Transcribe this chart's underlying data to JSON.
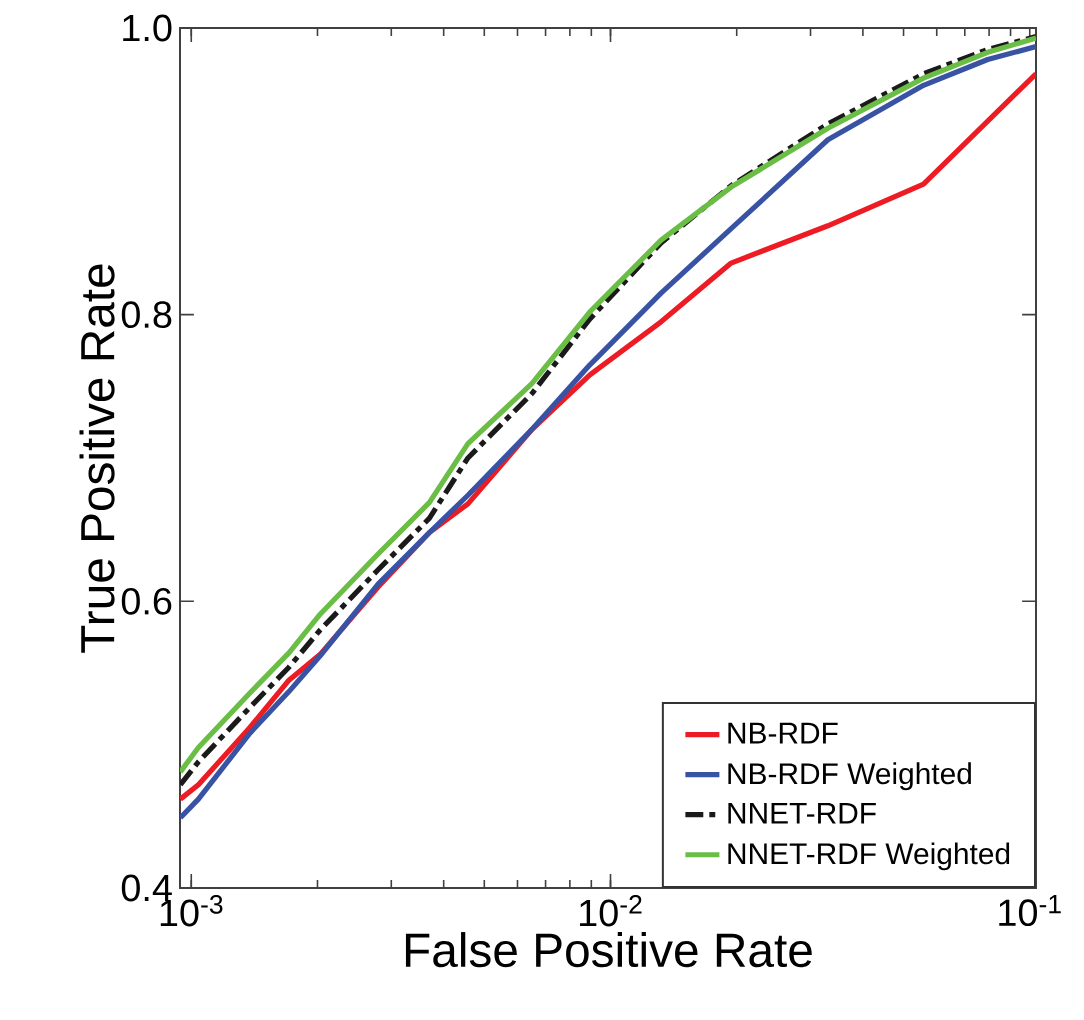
{
  "chart_data": {
    "type": "line",
    "xlabel": "False Positive Rate",
    "ylabel": "True Positive Rate",
    "x": [
      0.000942,
      0.00104,
      0.00138,
      0.00171,
      0.00203,
      0.00279,
      0.0037,
      0.00457,
      0.0065,
      0.00893,
      0.0132,
      0.0194,
      0.033,
      0.0558,
      0.0794,
      0.1035
    ],
    "series": [
      {
        "name": "NB-RDF",
        "color": "#ed1c24",
        "values": [
          0.462,
          0.472,
          0.512,
          0.545,
          0.563,
          0.61,
          0.648,
          0.668,
          0.72,
          0.758,
          0.795,
          0.836,
          0.862,
          0.891,
          0.935,
          0.968
        ]
      },
      {
        "name": "NB-RDF Weighted",
        "color": "#3953a4",
        "values": [
          0.449,
          0.462,
          0.508,
          0.537,
          0.562,
          0.612,
          0.648,
          0.674,
          0.72,
          0.765,
          0.815,
          0.86,
          0.922,
          0.96,
          0.978,
          0.987
        ]
      },
      {
        "name": "NNET-RDF",
        "color": "#1a1a1a",
        "line_style": "dashdot",
        "values": [
          0.472,
          0.488,
          0.526,
          0.554,
          0.58,
          0.622,
          0.658,
          0.7,
          0.745,
          0.797,
          0.85,
          0.89,
          0.933,
          0.968,
          0.985,
          0.994
        ]
      },
      {
        "name": "NNET-RDF Weighted",
        "color": "#6abd45",
        "values": [
          0.481,
          0.498,
          0.536,
          0.564,
          0.591,
          0.633,
          0.669,
          0.71,
          0.752,
          0.802,
          0.852,
          0.889,
          0.93,
          0.965,
          0.983,
          0.993
        ]
      }
    ],
    "log": "x",
    "xlim": [
      0.00094,
      0.1035
    ],
    "ylim": [
      0.4,
      1.0
    ],
    "xticks": [
      {
        "value": 0.001,
        "label": "10$^{-3}$"
      },
      {
        "value": 0.01,
        "label": "10$^{-2}$"
      },
      {
        "value": 0.1,
        "label": "10$^{-1}$"
      }
    ],
    "yticks": [
      0.4,
      0.6,
      0.8,
      {
        "value": 1.0,
        "label": "1.0"
      }
    ],
    "grid": false,
    "legend": "bottom right",
    "line_style": "solid",
    "marker": "none"
  }
}
